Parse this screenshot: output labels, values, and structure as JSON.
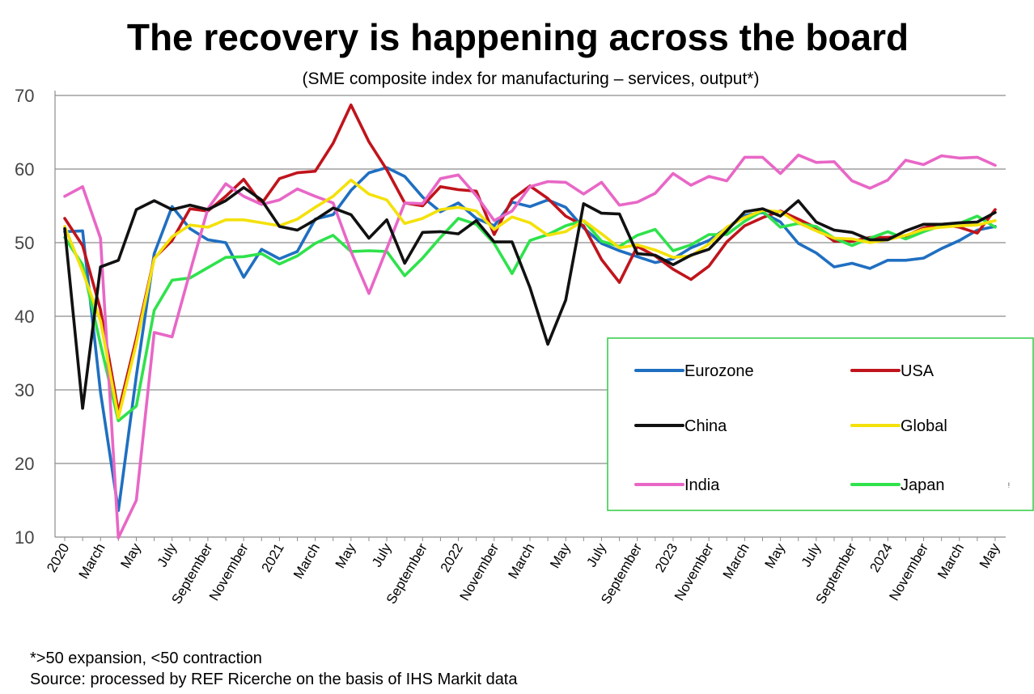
{
  "chart_data": {
    "type": "line",
    "title": "The recovery is happening across the board",
    "subtitle": "(SME composite index for manufacturing – services, output*)",
    "ylim": [
      10,
      70
    ],
    "yticks": [
      10,
      20,
      30,
      40,
      50,
      60,
      70
    ],
    "grid": true,
    "legend_position": "lower-right",
    "x": [
      "2020-01",
      "2020-02",
      "2020-03",
      "2020-04",
      "2020-05",
      "2020-06",
      "2020-07",
      "2020-08",
      "2020-09",
      "2020-10",
      "2020-11",
      "2020-12",
      "2021-01",
      "2021-02",
      "2021-03",
      "2021-04",
      "2021-05",
      "2021-06",
      "2021-07",
      "2021-08",
      "2021-09",
      "2021-10",
      "2021-11",
      "2021-12",
      "2022-01",
      "2022-02",
      "2022-03",
      "2022-04",
      "2022-05",
      "2022-06",
      "2022-07",
      "2022-08",
      "2022-09",
      "2022-10",
      "2022-11",
      "2022-12",
      "2023-01",
      "2023-02",
      "2023-03",
      "2023-04",
      "2023-05",
      "2023-06",
      "2023-07",
      "2023-08",
      "2023-09",
      "2023-10",
      "2023-11",
      "2023-12",
      "2024-01",
      "2024-02",
      "2024-03",
      "2024-04",
      "2024-05"
    ],
    "x_tick_labels": [
      {
        "label": "2020",
        "index": 0
      },
      {
        "label": "March",
        "index": 2
      },
      {
        "label": "May",
        "index": 4
      },
      {
        "label": "July",
        "index": 6
      },
      {
        "label": "September",
        "index": 8
      },
      {
        "label": "November",
        "index": 10
      },
      {
        "label": "2021",
        "index": 12
      },
      {
        "label": "March",
        "index": 14
      },
      {
        "label": "May",
        "index": 16
      },
      {
        "label": "July",
        "index": 18
      },
      {
        "label": "September",
        "index": 20
      },
      {
        "label": "2022",
        "index": 22
      },
      {
        "label": "November",
        "index": 24
      },
      {
        "label": "March",
        "index": 26
      },
      {
        "label": "May",
        "index": 28
      },
      {
        "label": "July",
        "index": 30
      },
      {
        "label": "September",
        "index": 32
      },
      {
        "label": "2023",
        "index": 34
      },
      {
        "label": "November",
        "index": 36
      },
      {
        "label": "March",
        "index": 38
      },
      {
        "label": "May",
        "index": 40
      },
      {
        "label": "July",
        "index": 42
      },
      {
        "label": "September",
        "index": 44
      },
      {
        "label": "2024",
        "index": 46
      },
      {
        "label": "November",
        "index": 48
      },
      {
        "label": "March",
        "index": 50
      },
      {
        "label": "May",
        "index": 52
      }
    ],
    "series": [
      {
        "name": "Eurozone",
        "color": "#1f6fc1",
        "values": [
          51.5,
          51.6,
          29.7,
          13.6,
          31.9,
          48.5,
          54.9,
          51.9,
          50.4,
          50.0,
          45.3,
          49.1,
          47.8,
          48.8,
          53.2,
          53.8,
          57.1,
          59.5,
          60.2,
          59.0,
          56.2,
          54.2,
          55.4,
          53.3,
          52.3,
          55.5,
          54.9,
          55.8,
          54.8,
          52.0,
          49.9,
          48.9,
          48.1,
          47.3,
          47.8,
          49.3,
          50.3,
          52.0,
          53.7,
          54.1,
          52.8,
          49.9,
          48.6,
          46.7,
          47.2,
          46.5,
          47.6,
          47.6,
          47.9,
          49.2,
          50.3,
          51.7,
          52.2
        ]
      },
      {
        "name": "USA",
        "color": "#c0141c",
        "values": [
          53.3,
          49.6,
          40.9,
          27.0,
          37.0,
          47.9,
          50.3,
          54.6,
          54.3,
          56.3,
          58.6,
          55.3,
          58.7,
          59.5,
          59.7,
          63.5,
          68.7,
          63.7,
          59.9,
          55.4,
          55.0,
          57.6,
          57.2,
          57.0,
          51.1,
          55.9,
          57.7,
          56.0,
          53.6,
          52.3,
          47.7,
          44.6,
          49.5,
          48.2,
          46.4,
          45.0,
          46.8,
          50.1,
          52.3,
          53.4,
          54.3,
          53.2,
          52.0,
          50.2,
          50.2,
          50.7,
          50.7,
          50.9,
          52.0,
          52.5,
          52.1,
          51.3,
          54.5
        ]
      },
      {
        "name": "China",
        "color": "#111111",
        "values": [
          51.9,
          27.5,
          46.7,
          47.6,
          54.5,
          55.7,
          54.5,
          55.1,
          54.5,
          55.7,
          57.5,
          55.8,
          52.2,
          51.7,
          53.1,
          54.7,
          53.8,
          50.6,
          53.1,
          47.2,
          51.4,
          51.5,
          51.2,
          53.0,
          50.1,
          50.1,
          43.9,
          36.2,
          42.2,
          55.3,
          54.0,
          53.9,
          48.5,
          48.3,
          47.0,
          48.3,
          49.1,
          51.6,
          54.2,
          54.6,
          53.6,
          55.7,
          52.8,
          51.7,
          51.4,
          50.4,
          50.4,
          51.6,
          52.5,
          52.5,
          52.7,
          52.8,
          54.1
        ]
      },
      {
        "name": "Global",
        "color": "#f4e10a",
        "values": [
          52.2,
          46.1,
          39.4,
          26.2,
          36.3,
          47.8,
          50.8,
          52.4,
          52.1,
          53.1,
          53.1,
          52.7,
          52.3,
          53.2,
          54.8,
          56.3,
          58.5,
          56.6,
          55.8,
          52.6,
          53.3,
          54.5,
          54.8,
          54.3,
          51.8,
          53.5,
          52.7,
          51.0,
          51.5,
          53.0,
          51.2,
          49.3,
          49.7,
          49.0,
          48.0,
          48.2,
          49.8,
          52.1,
          53.4,
          54.4,
          54.2,
          52.7,
          51.6,
          50.6,
          50.5,
          50.0,
          50.4,
          51.0,
          51.8,
          52.1,
          52.3,
          52.4,
          53.0
        ]
      },
      {
        "name": "India",
        "color": "#e867c6",
        "values": [
          56.3,
          57.6,
          50.6,
          9.9,
          15.0,
          37.8,
          37.2,
          46.0,
          54.6,
          58.0,
          56.3,
          55.2,
          55.8,
          57.3,
          56.3,
          55.4,
          48.8,
          43.1,
          49.2,
          55.4,
          55.3,
          58.7,
          59.2,
          56.4,
          53.0,
          54.3,
          57.6,
          58.3,
          58.2,
          56.6,
          58.2,
          55.1,
          55.5,
          56.7,
          59.4,
          57.8,
          59.0,
          58.4,
          61.6,
          61.6,
          59.4,
          61.9,
          60.9,
          61.0,
          58.4,
          57.4,
          58.5,
          61.2,
          60.6,
          61.8,
          61.5,
          61.6,
          60.5
        ]
      },
      {
        "name": "Japan",
        "color": "#2fe24c",
        "values": [
          50.7,
          47.0,
          36.2,
          25.8,
          27.8,
          40.8,
          44.9,
          45.2,
          46.6,
          48.0,
          48.1,
          48.5,
          47.1,
          48.2,
          49.9,
          51.0,
          48.8,
          48.9,
          48.8,
          45.5,
          47.9,
          50.7,
          53.3,
          52.5,
          49.9,
          45.8,
          50.3,
          51.1,
          52.3,
          53.0,
          50.2,
          49.5,
          51.0,
          51.8,
          48.9,
          49.7,
          51.1,
          51.1,
          52.9,
          54.3,
          52.1,
          52.6,
          52.2,
          50.6,
          49.6,
          50.6,
          51.5,
          50.5,
          51.5,
          52.3,
          52.6,
          53.6,
          52.1
        ]
      }
    ]
  },
  "footnotes": {
    "note": "*>50 expansion, <50 contraction",
    "source": "Source: processed by REF Ricerche on the basis of IHS Markit data"
  },
  "legend_order": [
    0,
    1,
    2,
    3,
    4,
    5
  ]
}
